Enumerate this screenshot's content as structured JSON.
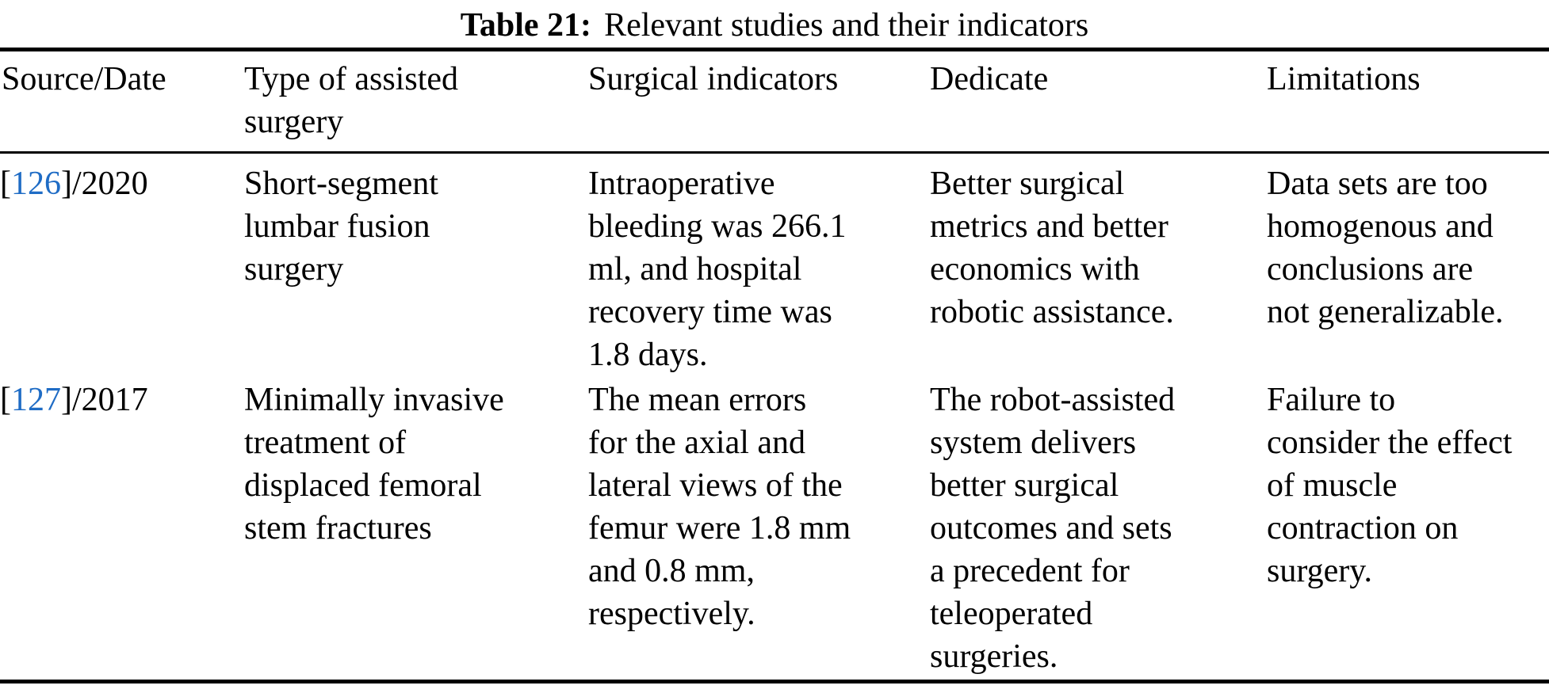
{
  "page": {
    "background_color": "#ffffff",
    "text_color": "#000000",
    "citation_color": "#1f6cc5"
  },
  "title": {
    "label": "Table 21:",
    "text": "Relevant studies and their indicators"
  },
  "table": {
    "headers": {
      "source_date": "Source/Date",
      "surgery_type": "Type of assisted\nsurgery",
      "indicators": "Surgical indicators",
      "dedicate": "Dedicate",
      "limitations": "Limitations"
    },
    "rows": [
      {
        "citation": {
          "open": "[",
          "ref": "126",
          "close": "]/2020"
        },
        "surgery_type": "Short-segment\nlumbar fusion\nsurgery",
        "indicators": "Intraoperative\nbleeding was 266.1\nml, and hospital\nrecovery time was\n1.8 days.",
        "dedicate": "Better surgical\nmetrics and better\neconomics with\nrobotic assistance.",
        "limitations": "Data sets are too\nhomogenous and\nconclusions are\nnot generalizable."
      },
      {
        "citation": {
          "open": "[",
          "ref": "127",
          "close": "]/2017"
        },
        "surgery_type": "Minimally invasive\ntreatment of\ndisplaced femoral\nstem fractures",
        "indicators": "The mean errors\nfor the axial and\nlateral views of the\nfemur were 1.8 mm\nand 0.8 mm,\nrespectively.",
        "dedicate": "The robot-assisted\nsystem delivers\nbetter surgical\noutcomes and sets\na precedent for\nteleoperated\nsurgeries.",
        "limitations": "Failure to\nconsider the effect\nof muscle\ncontraction on\nsurgery."
      }
    ]
  }
}
